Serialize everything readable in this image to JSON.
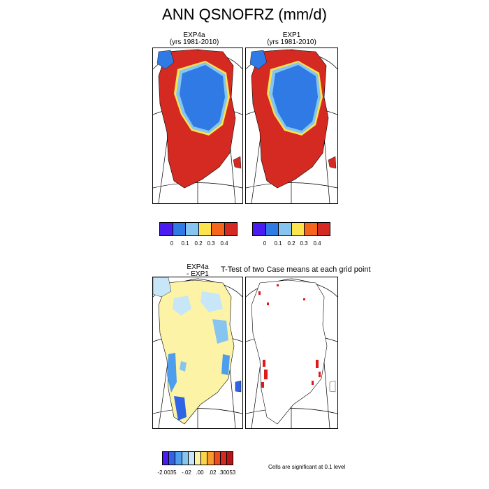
{
  "title": "ANN QSNOFRZ (mm/d)",
  "panels": {
    "p1": {
      "title": "EXP4a",
      "subtitle": "(yrs 1981-2010)"
    },
    "p2": {
      "title": "EXP1",
      "subtitle": "(yrs 1981-2010)"
    },
    "p3": {
      "title": "EXP4a",
      "subtitle": "- EXP1"
    },
    "p4": {
      "title": "T-Test of two Case means at each grid point"
    }
  },
  "colorbar_main": {
    "colors": [
      "#4a1cf0",
      "#2f7ae5",
      "#86c5f0",
      "#fde34d",
      "#f5651c",
      "#d42a22"
    ],
    "ticks": [
      "0",
      "0.1",
      "0.2",
      "0.3",
      "0.4"
    ]
  },
  "colorbar_diff": {
    "colors": [
      "#4a1cf0",
      "#2f64e5",
      "#4f9ded",
      "#86c5f0",
      "#c7e6f8",
      "#fdf3a6",
      "#fdd34a",
      "#f89b2c",
      "#f04a1f",
      "#d42a22",
      "#b51618"
    ],
    "ticks": [
      "-2.0035",
      "-.02",
      ".00",
      ".02",
      ".30053"
    ]
  },
  "note": "Cells are significant at 0.1 level",
  "chart_data": [
    {
      "type": "heatmap",
      "title": "EXP4a",
      "subtitle": "(yrs 1981-2010)",
      "levels": [
        0,
        0.1,
        0.2,
        0.3,
        0.4
      ],
      "units": "mm/d"
    },
    {
      "type": "heatmap",
      "title": "EXP1",
      "subtitle": "(yrs 1981-2010)",
      "levels": [
        0,
        0.1,
        0.2,
        0.3,
        0.4
      ],
      "units": "mm/d"
    },
    {
      "type": "heatmap",
      "title": "EXP4a - EXP1",
      "levels": [
        "-2.0035",
        "-.02",
        ".00",
        ".02",
        ".30053"
      ]
    },
    {
      "type": "heatmap",
      "title": "T-Test of two Case means at each grid point",
      "note": "Cells are significant at 0.1 level"
    }
  ]
}
